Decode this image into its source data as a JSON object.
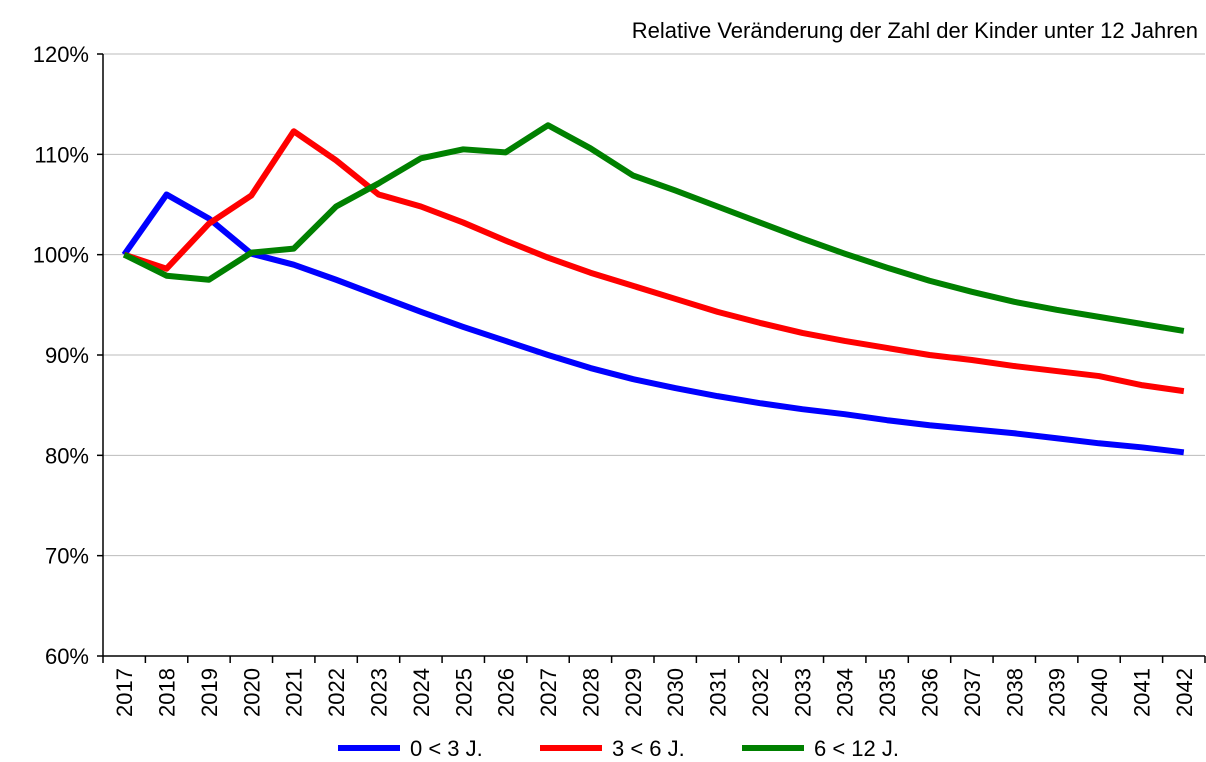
{
  "chart_data": {
    "type": "line",
    "title": "Relative Veränderung der Zahl der Kinder unter 12 Jahren",
    "categories": [
      "2017",
      "2018",
      "2019",
      "2020",
      "2021",
      "2022",
      "2023",
      "2024",
      "2025",
      "2026",
      "2027",
      "2028",
      "2029",
      "2030",
      "2031",
      "2032",
      "2033",
      "2034",
      "2035",
      "2036",
      "2037",
      "2038",
      "2039",
      "2040",
      "2041",
      "2042"
    ],
    "series": [
      {
        "name": "0 < 3 J.",
        "color": "#0000ff",
        "values": [
          100,
          106.0,
          103.6,
          100.1,
          99.0,
          97.5,
          95.9,
          94.3,
          92.8,
          91.4,
          90.0,
          88.7,
          87.6,
          86.7,
          85.9,
          85.2,
          84.6,
          84.1,
          83.5,
          83.0,
          82.6,
          82.2,
          81.7,
          81.2,
          80.8,
          80.3
        ]
      },
      {
        "name": "3 < 6 J.",
        "color": "#ff0000",
        "values": [
          100,
          98.6,
          103.1,
          105.9,
          112.3,
          109.4,
          106.0,
          104.8,
          103.2,
          101.4,
          99.7,
          98.2,
          96.9,
          95.6,
          94.3,
          93.2,
          92.2,
          91.4,
          90.7,
          90.0,
          89.5,
          88.9,
          88.4,
          87.9,
          87.0,
          86.4
        ]
      },
      {
        "name": "6 < 12 J.",
        "color": "#008000",
        "values": [
          100,
          97.9,
          97.5,
          100.2,
          100.6,
          104.8,
          107.1,
          109.6,
          110.5,
          110.2,
          112.9,
          110.6,
          107.9,
          106.4,
          104.8,
          103.2,
          101.6,
          100.1,
          98.7,
          97.4,
          96.3,
          95.3,
          94.5,
          93.8,
          93.1,
          92.4
        ]
      }
    ],
    "ylim": [
      60,
      120
    ],
    "yticks": [
      {
        "value": 60,
        "label": "60%"
      },
      {
        "value": 70,
        "label": "70%"
      },
      {
        "value": 80,
        "label": "80%"
      },
      {
        "value": 90,
        "label": "90%"
      },
      {
        "value": 100,
        "label": "100%"
      },
      {
        "value": 110,
        "label": "110%"
      },
      {
        "value": 120,
        "label": "120%"
      }
    ],
    "grid": true,
    "legend": "bottom"
  }
}
